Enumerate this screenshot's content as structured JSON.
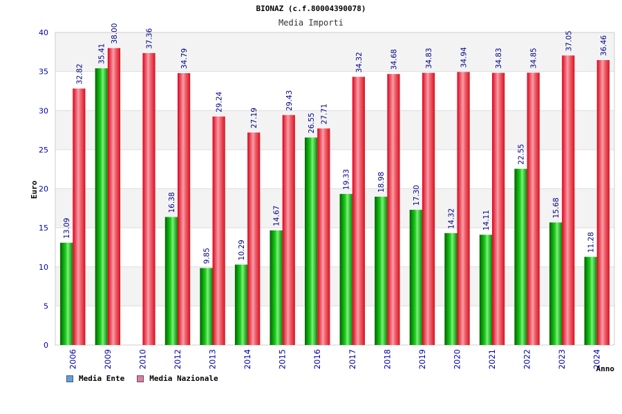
{
  "chart_data": {
    "type": "bar",
    "title": "BIONAZ (c.f.80004390078)",
    "subtitle": "Media Importi",
    "xlabel": "Anno",
    "ylabel": "Euro",
    "ylim": [
      0,
      40
    ],
    "yticks": [
      "0",
      "5",
      "10",
      "15",
      "20",
      "25",
      "30",
      "35",
      "40"
    ],
    "grid": true,
    "legend_position": "bottom-left",
    "categories": [
      "2006",
      "2009",
      "2010",
      "2012",
      "2013",
      "2014",
      "2015",
      "2016",
      "2017",
      "2018",
      "2019",
      "2020",
      "2021",
      "2022",
      "2023",
      "2024"
    ],
    "series": [
      {
        "name": "Media Ente",
        "color": "#00b000",
        "swatch": "#5aa0e8",
        "values": [
          13.09,
          35.41,
          null,
          16.38,
          9.85,
          10.29,
          14.67,
          26.55,
          19.33,
          18.98,
          17.3,
          14.32,
          14.11,
          22.55,
          15.68,
          11.28
        ],
        "labels": [
          "13.09",
          "35.41",
          "",
          "16.38",
          "9.85",
          "10.29",
          "14.67",
          "26.55",
          "19.33",
          "18.98",
          "17.30",
          "14.32",
          "14.11",
          "22.55",
          "15.68",
          "11.28"
        ]
      },
      {
        "name": "Media Nazionale",
        "color": "#e8141e",
        "swatch": "#e07aa8",
        "values": [
          32.82,
          38.0,
          37.36,
          34.79,
          29.24,
          27.19,
          29.43,
          27.71,
          34.32,
          34.68,
          34.83,
          34.94,
          34.83,
          34.85,
          37.05,
          36.46
        ],
        "labels": [
          "32.82",
          "38.00",
          "37.36",
          "34.79",
          "29.24",
          "27.19",
          "29.43",
          "27.71",
          "34.32",
          "34.68",
          "34.83",
          "34.94",
          "34.83",
          "34.85",
          "37.05",
          "36.46"
        ]
      }
    ]
  }
}
